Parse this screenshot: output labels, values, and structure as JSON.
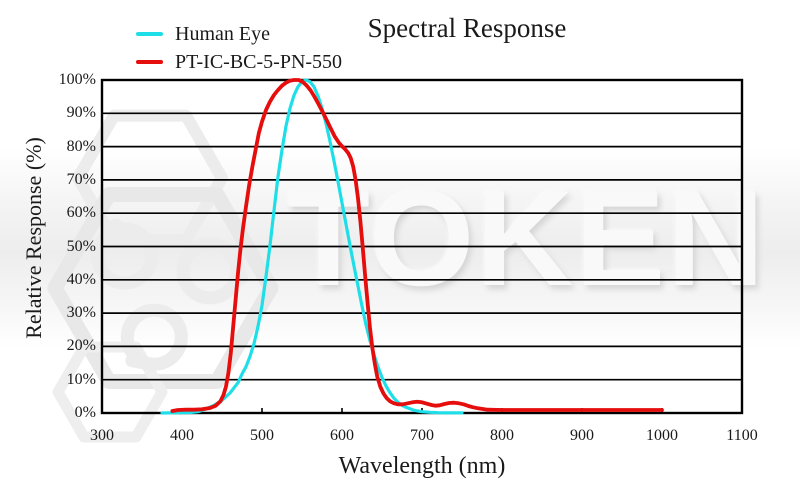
{
  "watermark": {
    "text": "TOKEN",
    "logo": "token-hexagon-logo"
  },
  "chart_data": {
    "type": "line",
    "title": "Spectral Response",
    "xlabel": "Wavelength (nm)",
    "ylabel": "Relative Response (%)",
    "xlim": [
      300,
      1100
    ],
    "ylim": [
      0,
      100
    ],
    "x_ticks": [
      300,
      400,
      500,
      600,
      700,
      800,
      900,
      1000,
      1100
    ],
    "x_tick_labels": [
      "300",
      "400",
      "500",
      "600",
      "700",
      "800",
      "900",
      "1000",
      "1100"
    ],
    "y_ticks": [
      0,
      10,
      20,
      30,
      40,
      50,
      60,
      70,
      80,
      90,
      100
    ],
    "y_tick_labels": [
      "0%",
      "10%",
      "20%",
      "30%",
      "40%",
      "50%",
      "60%",
      "70%",
      "80%",
      "90%",
      "100%"
    ],
    "grid": "horizontal",
    "legend_position": "top-left",
    "series": [
      {
        "name": "Human Eye",
        "color": "#1edfe8",
        "points": [
          [
            375,
            0
          ],
          [
            390,
            0.05
          ],
          [
            400,
            0.1
          ],
          [
            410,
            0.15
          ],
          [
            420,
            0.4
          ],
          [
            430,
            1.2
          ],
          [
            440,
            2.3
          ],
          [
            450,
            3.8
          ],
          [
            460,
            6
          ],
          [
            470,
            9.1
          ],
          [
            475,
            11.7
          ],
          [
            480,
            13.9
          ],
          [
            485,
            17
          ],
          [
            490,
            20.8
          ],
          [
            495,
            26
          ],
          [
            500,
            32.3
          ],
          [
            505,
            41
          ],
          [
            510,
            50.3
          ],
          [
            515,
            60.8
          ],
          [
            520,
            71
          ],
          [
            525,
            79
          ],
          [
            530,
            86.2
          ],
          [
            535,
            91.5
          ],
          [
            540,
            95.4
          ],
          [
            545,
            98
          ],
          [
            550,
            99.5
          ],
          [
            555,
            100
          ],
          [
            560,
            99.5
          ],
          [
            565,
            98
          ],
          [
            570,
            95.2
          ],
          [
            575,
            91.5
          ],
          [
            580,
            87
          ],
          [
            585,
            81.6
          ],
          [
            590,
            75.7
          ],
          [
            595,
            69.5
          ],
          [
            600,
            63.1
          ],
          [
            605,
            56.7
          ],
          [
            610,
            50.3
          ],
          [
            615,
            44.1
          ],
          [
            620,
            38.1
          ],
          [
            625,
            32.1
          ],
          [
            630,
            26.5
          ],
          [
            635,
            21.7
          ],
          [
            640,
            17.5
          ],
          [
            645,
            13.8
          ],
          [
            650,
            10.7
          ],
          [
            655,
            8.1
          ],
          [
            660,
            6.1
          ],
          [
            665,
            4.4
          ],
          [
            670,
            3.2
          ],
          [
            675,
            2.3
          ],
          [
            680,
            1.7
          ],
          [
            690,
            0.8
          ],
          [
            700,
            0.4
          ],
          [
            710,
            0.2
          ],
          [
            720,
            0.1
          ],
          [
            735,
            0.05
          ],
          [
            750,
            0.02
          ]
        ]
      },
      {
        "name": "PT-IC-BC-5-PN-550",
        "color": "#e60d0d",
        "points": [
          [
            388,
            0.6
          ],
          [
            395,
            0.9
          ],
          [
            405,
            1
          ],
          [
            415,
            1
          ],
          [
            425,
            1.1
          ],
          [
            435,
            1.5
          ],
          [
            442,
            2.2
          ],
          [
            448,
            3.5
          ],
          [
            452,
            5.5
          ],
          [
            455,
            8
          ],
          [
            458,
            12
          ],
          [
            461,
            18
          ],
          [
            464,
            26
          ],
          [
            467,
            34
          ],
          [
            470,
            42
          ],
          [
            473,
            49
          ],
          [
            476,
            55
          ],
          [
            480,
            62
          ],
          [
            484,
            68.5
          ],
          [
            488,
            74
          ],
          [
            492,
            79
          ],
          [
            496,
            84
          ],
          [
            500,
            87.5
          ],
          [
            505,
            91
          ],
          [
            510,
            93.5
          ],
          [
            515,
            95.5
          ],
          [
            520,
            97
          ],
          [
            525,
            98.3
          ],
          [
            530,
            99.2
          ],
          [
            535,
            99.8
          ],
          [
            540,
            100
          ],
          [
            546,
            100
          ],
          [
            551,
            99.4
          ],
          [
            556,
            98.3
          ],
          [
            561,
            96.8
          ],
          [
            566,
            94.8
          ],
          [
            571,
            92.6
          ],
          [
            576,
            90.3
          ],
          [
            581,
            87.9
          ],
          [
            586,
            85.4
          ],
          [
            591,
            83
          ],
          [
            596,
            81.2
          ],
          [
            600,
            80.1
          ],
          [
            604,
            79.2
          ],
          [
            608,
            78
          ],
          [
            611,
            76.5
          ],
          [
            614,
            74
          ],
          [
            617,
            70
          ],
          [
            620,
            64.5
          ],
          [
            623,
            57.5
          ],
          [
            626,
            49.5
          ],
          [
            629,
            41
          ],
          [
            632,
            33
          ],
          [
            635,
            25.5
          ],
          [
            638,
            19.5
          ],
          [
            641,
            14.8
          ],
          [
            644,
            11
          ],
          [
            648,
            7.8
          ],
          [
            652,
            5.8
          ],
          [
            656,
            4.4
          ],
          [
            660,
            3.5
          ],
          [
            665,
            2.9
          ],
          [
            670,
            2.6
          ],
          [
            676,
            2.6
          ],
          [
            682,
            2.9
          ],
          [
            688,
            3.2
          ],
          [
            694,
            3.4
          ],
          [
            700,
            3.2
          ],
          [
            706,
            2.8
          ],
          [
            712,
            2.4
          ],
          [
            717,
            2.2
          ],
          [
            722,
            2.3
          ],
          [
            728,
            2.7
          ],
          [
            734,
            3
          ],
          [
            740,
            3.1
          ],
          [
            746,
            2.9
          ],
          [
            752,
            2.6
          ],
          [
            758,
            2.1
          ],
          [
            764,
            1.7
          ],
          [
            770,
            1.4
          ],
          [
            776,
            1.2
          ],
          [
            782,
            1
          ],
          [
            800,
            0.9
          ],
          [
            840,
            0.9
          ],
          [
            880,
            0.9
          ],
          [
            920,
            0.9
          ],
          [
            960,
            0.9
          ],
          [
            1000,
            0.9
          ]
        ]
      }
    ]
  }
}
